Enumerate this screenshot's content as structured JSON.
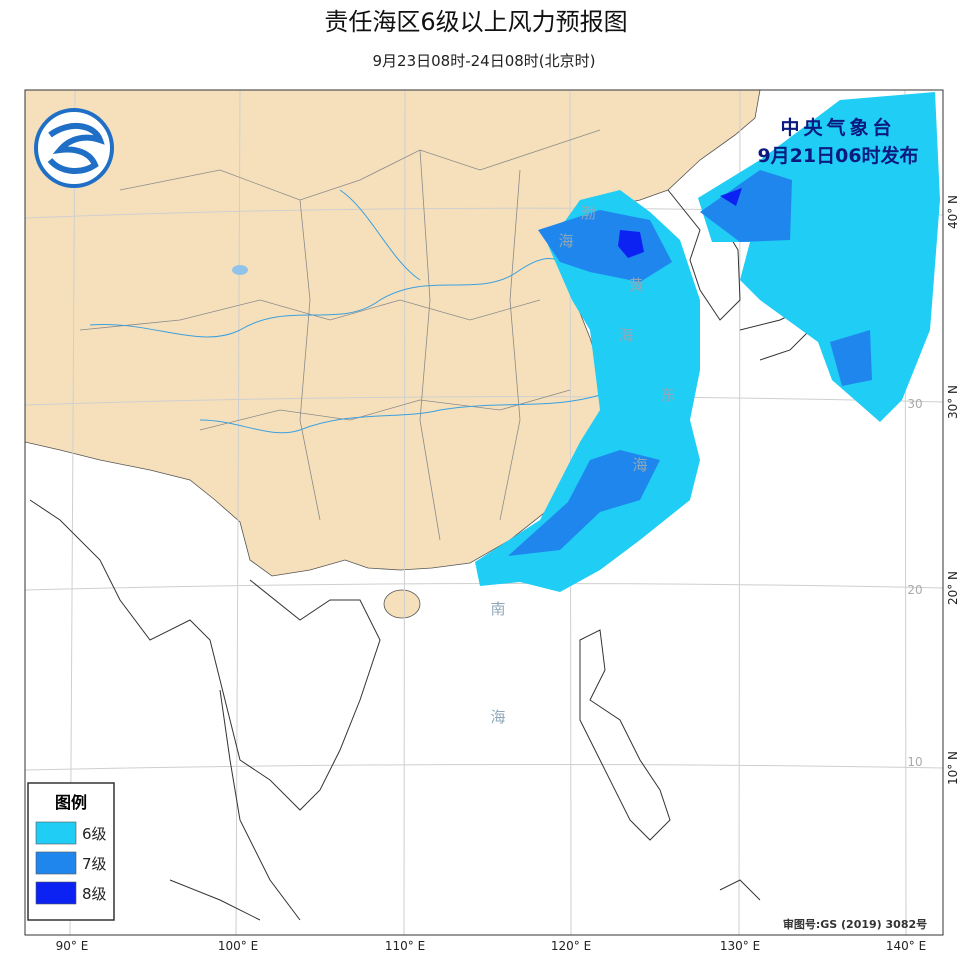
{
  "header": {
    "title": "责任海区6级以上风力预报图",
    "subtitle": "9月23日08时-24日08时(北京时)"
  },
  "issuer": {
    "name": "中央气象台",
    "time": "9月21日06时发布"
  },
  "legend": {
    "title": "图例",
    "items": [
      {
        "label": "6级",
        "color": "#1fcdf5"
      },
      {
        "label": "7级",
        "color": "#1f86ee"
      },
      {
        "label": "8级",
        "color": "#0b22f2"
      }
    ]
  },
  "map": {
    "sea_labels": [
      "渤",
      "海",
      "黄",
      "海",
      "东",
      "海",
      "南",
      "海"
    ],
    "lon_labels": [
      "90° E",
      "100° E",
      "110° E",
      "120° E",
      "130° E",
      "140° E"
    ],
    "lat_labels": [
      "40° N",
      "30° N",
      "20° N",
      "10° N"
    ],
    "grid_numbers": [
      "30",
      "20",
      "10"
    ]
  },
  "approval": "审图号:GS (2019) 3082号"
}
